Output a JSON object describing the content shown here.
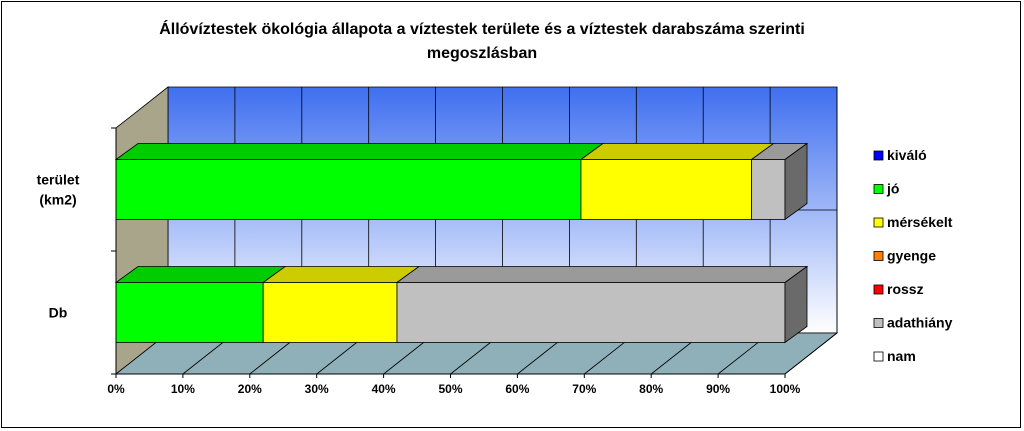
{
  "chart_data": {
    "type": "bar",
    "orientation": "horizontal",
    "stacked": "100%",
    "title": "Állóvíztestek ökológia állapota a víztestek területe és a víztestek darabszáma szerinti",
    "title_line2": "megoszlásban",
    "categories": [
      "terület (km2)",
      "Db"
    ],
    "category_lines": [
      [
        "terület",
        "(km2)"
      ],
      [
        "Db"
      ]
    ],
    "xlim": [
      0,
      100
    ],
    "x_ticks": [
      "0%",
      "10%",
      "20%",
      "30%",
      "40%",
      "50%",
      "60%",
      "70%",
      "80%",
      "90%",
      "100%"
    ],
    "grid": true,
    "legend_position": "right",
    "series": [
      {
        "name": "kiváló",
        "color": "#0000ff",
        "values": [
          0,
          0
        ]
      },
      {
        "name": "jó",
        "color": "#00ff00",
        "values": [
          69.5,
          22
        ]
      },
      {
        "name": "mérsékelt",
        "color": "#ffff00",
        "values": [
          25.5,
          20
        ]
      },
      {
        "name": "gyenge",
        "color": "#ff8000",
        "values": [
          0,
          0
        ]
      },
      {
        "name": "rossz",
        "color": "#ff0000",
        "values": [
          0,
          0
        ]
      },
      {
        "name": "adathiány",
        "color": "#c0c0c0",
        "values": [
          5,
          58
        ]
      },
      {
        "name": "nam",
        "color": "#ffffff",
        "values": [
          0,
          0
        ]
      }
    ]
  }
}
